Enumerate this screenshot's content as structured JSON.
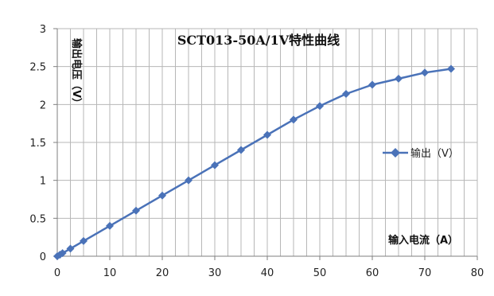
{
  "chart_data": {
    "type": "line",
    "title": "SCT013-50A/1V特性曲线",
    "xlabel": "输入电流（A）",
    "ylabel": "输出电压（V）",
    "xlim": [
      0,
      80
    ],
    "ylim": [
      0,
      3
    ],
    "x_ticks": [
      "0",
      "10",
      "20",
      "30",
      "40",
      "50",
      "60",
      "70",
      "80"
    ],
    "y_ticks": [
      "0",
      "0.5",
      "1",
      "1.5",
      "2",
      "2.5",
      "3"
    ],
    "grid": true,
    "legend_position": "right",
    "series": [
      {
        "name": "输出（V）",
        "color": "#4a72b8",
        "marker": "diamond",
        "x": [
          0,
          0.5,
          1,
          2.5,
          5,
          10,
          15,
          20,
          25,
          30,
          35,
          40,
          45,
          50,
          55,
          60,
          65,
          70,
          75
        ],
        "y": [
          0,
          0.02,
          0.04,
          0.1,
          0.2,
          0.4,
          0.6,
          0.8,
          1.0,
          1.2,
          1.4,
          1.6,
          1.8,
          1.98,
          2.14,
          2.26,
          2.34,
          2.42,
          2.47
        ]
      }
    ]
  }
}
